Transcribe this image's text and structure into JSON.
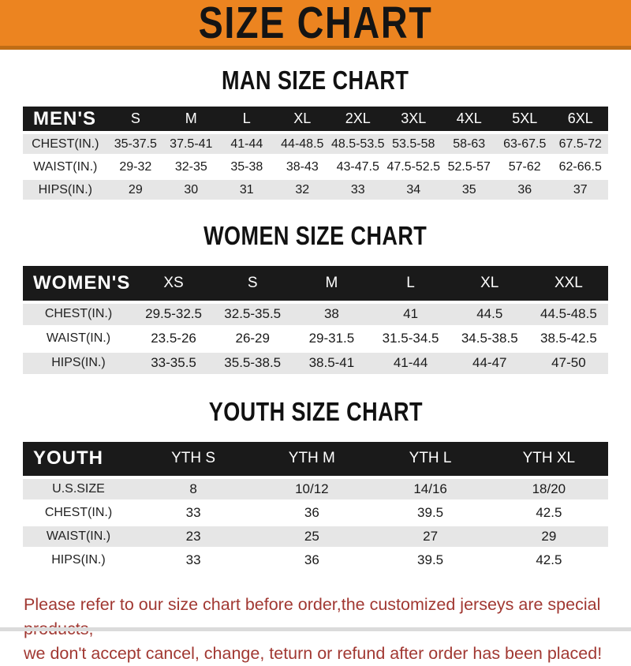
{
  "banner": {
    "title": "SIZE CHART"
  },
  "sections": [
    {
      "title": "MAN SIZE CHART",
      "header_label": "MEN'S",
      "columns": [
        "S",
        "M",
        "L",
        "XL",
        "2XL",
        "3XL",
        "4XL",
        "5XL",
        "6XL"
      ],
      "rows": [
        {
          "label": "CHEST(IN.)",
          "values": [
            "35-37.5",
            "37.5-41",
            "41-44",
            "44-48.5",
            "48.5-53.5",
            "53.5-58",
            "58-63",
            "63-67.5",
            "67.5-72"
          ]
        },
        {
          "label": "WAIST(IN.)",
          "values": [
            "29-32",
            "32-35",
            "35-38",
            "38-43",
            "43-47.5",
            "47.5-52.5",
            "52.5-57",
            "57-62",
            "62-66.5"
          ]
        },
        {
          "label": "HIPS(IN.)",
          "values": [
            "29",
            "30",
            "31",
            "32",
            "33",
            "34",
            "35",
            "36",
            "37"
          ]
        }
      ]
    },
    {
      "title": "WOMEN SIZE CHART",
      "header_label": "WOMEN'S",
      "columns": [
        "XS",
        "S",
        "M",
        "L",
        "XL",
        "XXL"
      ],
      "rows": [
        {
          "label": "CHEST(IN.)",
          "values": [
            "29.5-32.5",
            "32.5-35.5",
            "38",
            "41",
            "44.5",
            "44.5-48.5"
          ]
        },
        {
          "label": "WAIST(IN.)",
          "values": [
            "23.5-26",
            "26-29",
            "29-31.5",
            "31.5-34.5",
            "34.5-38.5",
            "38.5-42.5"
          ]
        },
        {
          "label": "HIPS(IN.)",
          "values": [
            "33-35.5",
            "35.5-38.5",
            "38.5-41",
            "41-44",
            "44-47",
            "47-50"
          ]
        }
      ]
    },
    {
      "title": "YOUTH SIZE CHART",
      "header_label": "YOUTH",
      "columns": [
        "YTH S",
        "YTH M",
        "YTH L",
        "YTH XL"
      ],
      "rows": [
        {
          "label": "U.S.SIZE",
          "values": [
            "8",
            "10/12",
            "14/16",
            "18/20"
          ]
        },
        {
          "label": "CHEST(IN.)",
          "values": [
            "33",
            "36",
            "39.5",
            "42.5"
          ]
        },
        {
          "label": "WAIST(IN.)",
          "values": [
            "23",
            "25",
            "27",
            "29"
          ]
        },
        {
          "label": "HIPS(IN.)",
          "values": [
            "33",
            "36",
            "39.5",
            "42.5"
          ]
        }
      ]
    }
  ],
  "notice": {
    "line1": "Please refer to our size chart before order,the customized jerseys are special products,",
    "line2": "we don't accept cancel, change, teturn or refund after order has been placed!"
  },
  "colors": {
    "banner_bg": "#EC8420",
    "banner_border": "#C06D15",
    "banner_text": "#141414",
    "table_header_bg": "#1A1A1A",
    "table_header_text": "#FFFFFF",
    "row_stripe": "#E6E6E6",
    "notice_text": "#A13832"
  }
}
